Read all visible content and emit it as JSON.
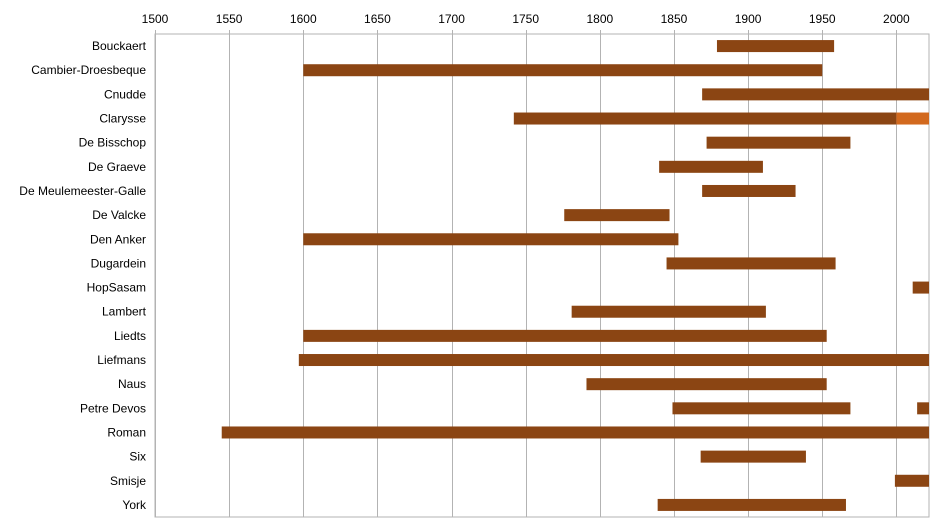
{
  "chart_data": {
    "type": "bar",
    "orientation": "horizontal-range",
    "x_axis": {
      "position": "top",
      "min": 1500,
      "max": 2022,
      "ticks": [
        1500,
        1550,
        1600,
        1650,
        1700,
        1750,
        1800,
        1850,
        1900,
        1950,
        2000
      ],
      "tick_labels": [
        "1500",
        "1550",
        "1600",
        "1650",
        "1700",
        "1750",
        "1800",
        "1850",
        "1900",
        "1950",
        "2000"
      ]
    },
    "grid": true,
    "legend": "none",
    "colors": {
      "primary": "#8B4513",
      "secondary": "#D2691E"
    },
    "categories": [
      "Bouckaert",
      "Cambier-Droesbeque",
      "Cnudde",
      "Clarysse",
      "De Bisschop",
      "De Graeve",
      "De Meulemeester-Galle",
      "De Valcke",
      "Den Anker",
      "Dugardein",
      "HopSasam",
      "Lambert",
      "Liedts",
      "Liefmans",
      "Naus",
      "Petre Devos",
      "Roman",
      "Six",
      "Smisje",
      "York"
    ],
    "ranges": [
      [
        {
          "start": 1879,
          "end": 1958,
          "color": "primary"
        }
      ],
      [
        {
          "start": 1600,
          "end": 1950,
          "color": "primary"
        }
      ],
      [
        {
          "start": 1869,
          "end": 2022,
          "color": "primary"
        }
      ],
      [
        {
          "start": 1742,
          "end": 2000,
          "color": "primary"
        },
        {
          "start": 2000,
          "end": 2022,
          "color": "secondary"
        }
      ],
      [
        {
          "start": 1872,
          "end": 1969,
          "color": "primary"
        }
      ],
      [
        {
          "start": 1840,
          "end": 1910,
          "color": "primary"
        }
      ],
      [
        {
          "start": 1869,
          "end": 1932,
          "color": "primary"
        }
      ],
      [
        {
          "start": 1776,
          "end": 1847,
          "color": "primary"
        }
      ],
      [
        {
          "start": 1600,
          "end": 1853,
          "color": "primary"
        }
      ],
      [
        {
          "start": 1845,
          "end": 1959,
          "color": "primary"
        }
      ],
      [
        {
          "start": 2011,
          "end": 2022,
          "color": "primary"
        }
      ],
      [
        {
          "start": 1781,
          "end": 1912,
          "color": "primary"
        }
      ],
      [
        {
          "start": 1600,
          "end": 1953,
          "color": "primary"
        }
      ],
      [
        {
          "start": 1597,
          "end": 2022,
          "color": "primary"
        }
      ],
      [
        {
          "start": 1791,
          "end": 1953,
          "color": "primary"
        }
      ],
      [
        {
          "start": 1849,
          "end": 1969,
          "color": "primary"
        },
        {
          "start": 2014,
          "end": 2022,
          "color": "primary"
        }
      ],
      [
        {
          "start": 1545,
          "end": 2022,
          "color": "primary"
        }
      ],
      [
        {
          "start": 1868,
          "end": 1939,
          "color": "primary"
        }
      ],
      [
        {
          "start": 1999,
          "end": 2022,
          "color": "primary"
        }
      ],
      [
        {
          "start": 1839,
          "end": 1966,
          "color": "primary"
        }
      ]
    ]
  }
}
